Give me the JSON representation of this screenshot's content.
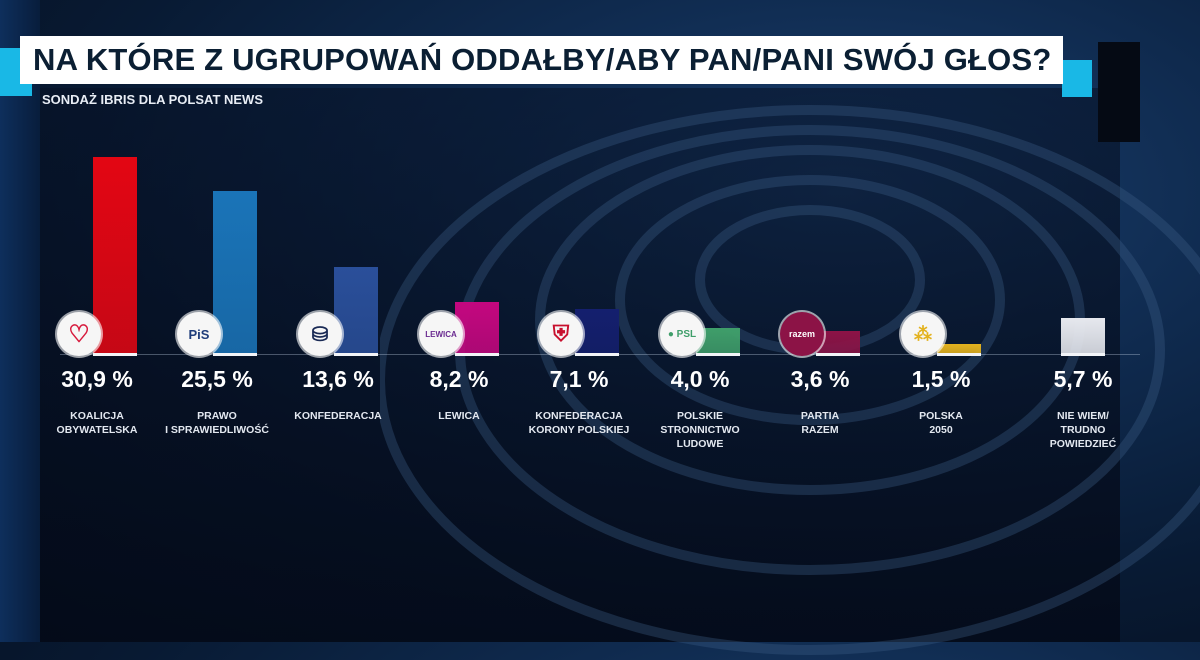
{
  "title": "NA KTÓRE Z UGRUPOWAŃ ODDAŁBY/ABY PAN/PANI SWÓJ GŁOS?",
  "subtitle": "SONDAŻ IBRIS DLA POLSAT NEWS",
  "colors": {
    "accent": "#19b8e6",
    "title_bg": "#ffffff",
    "title_text": "#0b1f33"
  },
  "parties": [
    {
      "name": "KOALICJA\nOBYWATELSKA",
      "value_label": "30,9 %",
      "value": 30.9,
      "color": "#e30613",
      "logo": "heart-logo",
      "logo_text": "♡"
    },
    {
      "name": "PRAWO\nI SPRAWIEDLIWOŚĆ",
      "value_label": "25,5 %",
      "value": 25.5,
      "color": "#1a74b8",
      "logo": "pis-logo",
      "logo_text": "PiS"
    },
    {
      "name": "KONFEDERACJA",
      "value_label": "13,6 %",
      "value": 13.6,
      "color": "#2a4f9a",
      "logo": "konfederacja-logo",
      "logo_text": "⛁"
    },
    {
      "name": "LEWICA",
      "value_label": "8,2 %",
      "value": 8.2,
      "color": "#c4077f",
      "logo": "lewica-logo",
      "logo_text": "LEWICA"
    },
    {
      "name": "KONFEDERACJA\nKORONY POLSKIEJ",
      "value_label": "7,1 %",
      "value": 7.1,
      "color": "#141f6e",
      "logo": "kkp-crest-logo",
      "logo_text": "⛨"
    },
    {
      "name": "POLSKIE\nSTRONNICTWO\nLUDOWE",
      "value_label": "4,0 %",
      "value": 4.0,
      "color": "#3f9e6a",
      "logo": "psl-logo",
      "logo_text": "● PSL"
    },
    {
      "name": "PARTIA\nRAZEM",
      "value_label": "3,6 %",
      "value": 3.6,
      "color": "#8c1346",
      "logo": "razem-logo",
      "logo_text": "razem"
    },
    {
      "name": "POLSKA\n2050",
      "value_label": "1,5 %",
      "value": 1.5,
      "color": "#e3b21e",
      "logo": "polska2050-logo",
      "logo_text": "⁂"
    },
    {
      "name": "NIE WIEM/\nTRUDNO\nPOWIEDZIEĆ",
      "value_label": "5,7 %",
      "value": 5.7,
      "color": "#e6e8ee",
      "logo": "",
      "logo_text": ""
    }
  ],
  "chart_data": {
    "type": "bar",
    "title": "NA KTÓRE Z UGRUPOWAŃ ODDAŁBY/ABY PAN/PANI SWÓJ GŁOS?",
    "subtitle": "SONDAŻ IBRIS DLA POLSAT NEWS",
    "categories": [
      "KOALICJA OBYWATELSKA",
      "PRAWO I SPRAWIEDLIWOŚĆ",
      "KONFEDERACJA",
      "LEWICA",
      "KONFEDERACJA KORONY POLSKIEJ",
      "POLSKIE STRONNICTWO LUDOWE",
      "PARTIA RAZEM",
      "POLSKA 2050",
      "NIE WIEM/TRUDNO POWIEDZIEĆ"
    ],
    "values": [
      30.9,
      25.5,
      13.6,
      8.2,
      7.1,
      4.0,
      3.6,
      1.5,
      5.7
    ],
    "value_labels": [
      "30,9 %",
      "25,5 %",
      "13,6 %",
      "8,2 %",
      "7,1 %",
      "4,0 %",
      "3,6 %",
      "1,5 %",
      "5,7 %"
    ],
    "colors": [
      "#e30613",
      "#1a74b8",
      "#2a4f9a",
      "#c4077f",
      "#141f6e",
      "#3f9e6a",
      "#8c1346",
      "#e3b21e",
      "#e6e8ee"
    ],
    "xlabel": "",
    "ylabel": "%",
    "ylim": [
      0,
      32
    ],
    "grid": false,
    "legend": "none"
  }
}
